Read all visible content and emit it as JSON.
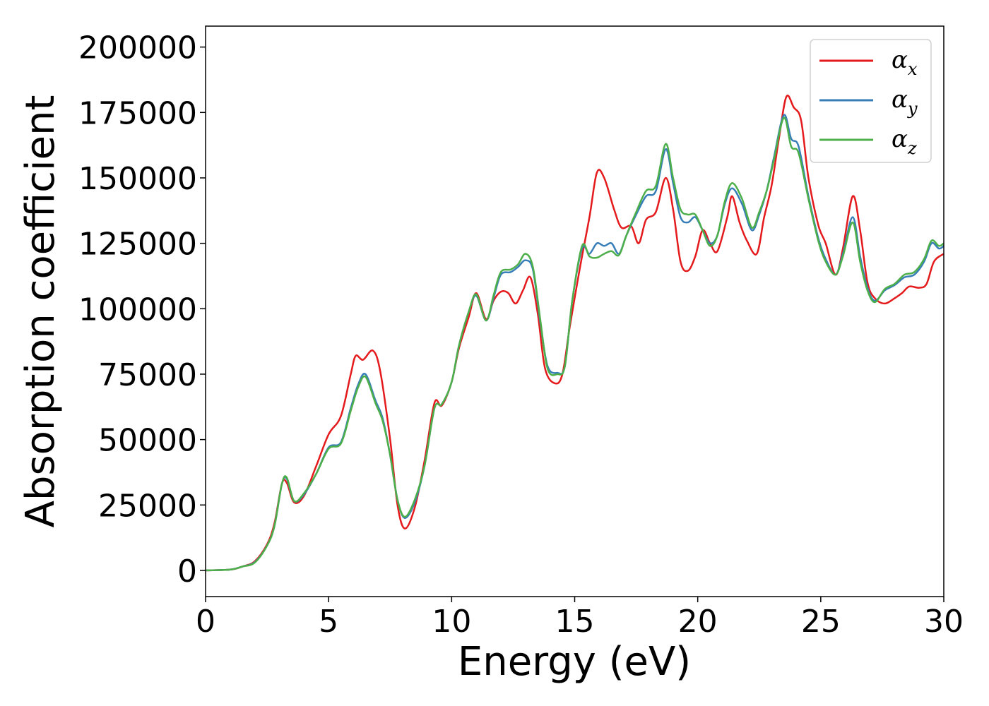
{
  "chart_data": {
    "type": "line",
    "title": "",
    "xlabel": "Energy (eV)",
    "ylabel": "Absorption coefficient",
    "xlim": [
      0,
      30
    ],
    "ylim": [
      -10000,
      208000
    ],
    "xticks": [
      0,
      5,
      10,
      15,
      20,
      25,
      30
    ],
    "yticks": [
      0,
      25000,
      50000,
      75000,
      100000,
      125000,
      150000,
      175000,
      200000
    ],
    "grid": false,
    "legend_position": "top-right",
    "series": [
      {
        "name": "α",
        "subscript": "x",
        "color": "#e41a1c",
        "points": [
          [
            0,
            0
          ],
          [
            1,
            300
          ],
          [
            1.5,
            1500
          ],
          [
            2,
            3500
          ],
          [
            2.5,
            10000
          ],
          [
            2.8,
            18000
          ],
          [
            3.1,
            33000
          ],
          [
            3.3,
            33500
          ],
          [
            3.6,
            26000
          ],
          [
            4,
            28500
          ],
          [
            4.5,
            40000
          ],
          [
            5,
            52000
          ],
          [
            5.5,
            59000
          ],
          [
            5.9,
            75000
          ],
          [
            6.1,
            82000
          ],
          [
            6.4,
            80500
          ],
          [
            6.8,
            84000
          ],
          [
            7.1,
            76000
          ],
          [
            7.5,
            50000
          ],
          [
            7.8,
            25000
          ],
          [
            8.1,
            16000
          ],
          [
            8.5,
            24000
          ],
          [
            8.9,
            42000
          ],
          [
            9.3,
            64000
          ],
          [
            9.6,
            63000
          ],
          [
            10,
            72000
          ],
          [
            10.3,
            85000
          ],
          [
            10.7,
            97000
          ],
          [
            11,
            106000
          ],
          [
            11.4,
            96000
          ],
          [
            11.7,
            103000
          ],
          [
            12,
            106500
          ],
          [
            12.3,
            106000
          ],
          [
            12.6,
            102000
          ],
          [
            12.9,
            107000
          ],
          [
            13.2,
            112000
          ],
          [
            13.5,
            98000
          ],
          [
            13.8,
            77000
          ],
          [
            14.2,
            71500
          ],
          [
            14.5,
            75000
          ],
          [
            14.8,
            93000
          ],
          [
            15.2,
            115000
          ],
          [
            15.6,
            135000
          ],
          [
            15.9,
            152000
          ],
          [
            16.2,
            150000
          ],
          [
            16.6,
            138000
          ],
          [
            16.9,
            131000
          ],
          [
            17.3,
            131500
          ],
          [
            17.6,
            125000
          ],
          [
            17.9,
            134000
          ],
          [
            18.3,
            137000
          ],
          [
            18.7,
            150000
          ],
          [
            19,
            138000
          ],
          [
            19.3,
            118000
          ],
          [
            19.6,
            114500
          ],
          [
            19.9,
            120000
          ],
          [
            20.2,
            130000
          ],
          [
            20.5,
            125000
          ],
          [
            20.8,
            122000
          ],
          [
            21.2,
            135000
          ],
          [
            21.4,
            143000
          ],
          [
            21.7,
            133000
          ],
          [
            22,
            126000
          ],
          [
            22.4,
            121000
          ],
          [
            22.7,
            135000
          ],
          [
            23,
            147000
          ],
          [
            23.3,
            165000
          ],
          [
            23.6,
            181000
          ],
          [
            23.9,
            177000
          ],
          [
            24.2,
            172000
          ],
          [
            24.5,
            150000
          ],
          [
            24.9,
            132000
          ],
          [
            25.2,
            125000
          ],
          [
            25.6,
            113000
          ],
          [
            25.9,
            123000
          ],
          [
            26.3,
            143000
          ],
          [
            26.6,
            130000
          ],
          [
            26.9,
            110000
          ],
          [
            27.2,
            104000
          ],
          [
            27.6,
            102000
          ],
          [
            28,
            104000
          ],
          [
            28.3,
            106000
          ],
          [
            28.6,
            108500
          ],
          [
            29,
            108000
          ],
          [
            29.3,
            109500
          ],
          [
            29.6,
            118000
          ],
          [
            30,
            121000
          ]
        ]
      },
      {
        "name": "α",
        "subscript": "y",
        "color": "#377eb8",
        "points": [
          [
            0,
            0
          ],
          [
            1,
            300
          ],
          [
            1.5,
            1500
          ],
          [
            2,
            3200
          ],
          [
            2.5,
            9500
          ],
          [
            2.8,
            17000
          ],
          [
            3.1,
            33000
          ],
          [
            3.3,
            35000
          ],
          [
            3.6,
            26500
          ],
          [
            4,
            29000
          ],
          [
            4.5,
            37000
          ],
          [
            5,
            47000
          ],
          [
            5.5,
            49000
          ],
          [
            5.9,
            62000
          ],
          [
            6.2,
            71000
          ],
          [
            6.5,
            75000
          ],
          [
            6.9,
            65000
          ],
          [
            7.2,
            58000
          ],
          [
            7.5,
            44000
          ],
          [
            7.8,
            27000
          ],
          [
            8.1,
            20000
          ],
          [
            8.5,
            26000
          ],
          [
            8.9,
            40000
          ],
          [
            9.3,
            62000
          ],
          [
            9.6,
            63500
          ],
          [
            10,
            72000
          ],
          [
            10.3,
            86000
          ],
          [
            10.7,
            99000
          ],
          [
            11,
            105000
          ],
          [
            11.4,
            95500
          ],
          [
            11.7,
            104000
          ],
          [
            12,
            113000
          ],
          [
            12.4,
            114000
          ],
          [
            12.7,
            116000
          ],
          [
            13,
            118500
          ],
          [
            13.3,
            115000
          ],
          [
            13.6,
            95000
          ],
          [
            13.9,
            78000
          ],
          [
            14.3,
            75500
          ],
          [
            14.6,
            78000
          ],
          [
            14.9,
            103000
          ],
          [
            15.3,
            123000
          ],
          [
            15.6,
            121000
          ],
          [
            15.9,
            125000
          ],
          [
            16.2,
            124000
          ],
          [
            16.5,
            125000
          ],
          [
            16.8,
            121000
          ],
          [
            17.1,
            128000
          ],
          [
            17.5,
            136000
          ],
          [
            17.9,
            143000
          ],
          [
            18.3,
            145000
          ],
          [
            18.7,
            161000
          ],
          [
            19,
            148000
          ],
          [
            19.3,
            135000
          ],
          [
            19.6,
            133000
          ],
          [
            19.9,
            135000
          ],
          [
            20.2,
            130000
          ],
          [
            20.5,
            125000
          ],
          [
            20.8,
            128000
          ],
          [
            21.1,
            140000
          ],
          [
            21.4,
            146000
          ],
          [
            21.8,
            140000
          ],
          [
            22.2,
            130000
          ],
          [
            22.5,
            136000
          ],
          [
            22.8,
            145000
          ],
          [
            23.1,
            158000
          ],
          [
            23.5,
            174000
          ],
          [
            23.8,
            165000
          ],
          [
            24.1,
            162000
          ],
          [
            24.5,
            143000
          ],
          [
            24.9,
            127000
          ],
          [
            25.2,
            119000
          ],
          [
            25.6,
            113000
          ],
          [
            25.9,
            121000
          ],
          [
            26.3,
            135000
          ],
          [
            26.6,
            120000
          ],
          [
            26.9,
            108000
          ],
          [
            27.2,
            103000
          ],
          [
            27.6,
            107000
          ],
          [
            28,
            109000
          ],
          [
            28.4,
            112000
          ],
          [
            28.8,
            113000
          ],
          [
            29.2,
            118000
          ],
          [
            29.5,
            125000
          ],
          [
            29.8,
            123000
          ],
          [
            30,
            124000
          ]
        ]
      },
      {
        "name": "α",
        "subscript": "z",
        "color": "#4daf4a",
        "points": [
          [
            0,
            0
          ],
          [
            1,
            300
          ],
          [
            1.5,
            1500
          ],
          [
            2,
            3000
          ],
          [
            2.5,
            9500
          ],
          [
            2.8,
            17000
          ],
          [
            3.1,
            33000
          ],
          [
            3.3,
            35500
          ],
          [
            3.6,
            26500
          ],
          [
            4,
            29500
          ],
          [
            4.5,
            37000
          ],
          [
            5,
            46500
          ],
          [
            5.5,
            48500
          ],
          [
            5.9,
            61000
          ],
          [
            6.2,
            70000
          ],
          [
            6.5,
            74000
          ],
          [
            6.9,
            64000
          ],
          [
            7.2,
            57000
          ],
          [
            7.5,
            44000
          ],
          [
            7.8,
            27000
          ],
          [
            8.1,
            20500
          ],
          [
            8.5,
            27000
          ],
          [
            8.9,
            40000
          ],
          [
            9.3,
            62000
          ],
          [
            9.6,
            63500
          ],
          [
            10,
            72000
          ],
          [
            10.3,
            86000
          ],
          [
            10.7,
            99000
          ],
          [
            11,
            105500
          ],
          [
            11.4,
            95500
          ],
          [
            11.7,
            105000
          ],
          [
            12,
            114000
          ],
          [
            12.4,
            115000
          ],
          [
            12.7,
            117000
          ],
          [
            13,
            121000
          ],
          [
            13.3,
            116000
          ],
          [
            13.6,
            96000
          ],
          [
            13.9,
            77000
          ],
          [
            14.3,
            75000
          ],
          [
            14.6,
            78000
          ],
          [
            14.9,
            103000
          ],
          [
            15.3,
            124000
          ],
          [
            15.6,
            120000
          ],
          [
            15.9,
            119500
          ],
          [
            16.2,
            121000
          ],
          [
            16.5,
            122000
          ],
          [
            16.8,
            120500
          ],
          [
            17.1,
            128000
          ],
          [
            17.5,
            137000
          ],
          [
            17.9,
            145000
          ],
          [
            18.3,
            147000
          ],
          [
            18.7,
            163000
          ],
          [
            19,
            150000
          ],
          [
            19.3,
            138000
          ],
          [
            19.6,
            136000
          ],
          [
            19.9,
            136000
          ],
          [
            20.2,
            130000
          ],
          [
            20.5,
            124000
          ],
          [
            20.8,
            128000
          ],
          [
            21.1,
            141000
          ],
          [
            21.4,
            148000
          ],
          [
            21.8,
            142000
          ],
          [
            22.2,
            131000
          ],
          [
            22.5,
            137000
          ],
          [
            22.8,
            145000
          ],
          [
            23.1,
            157000
          ],
          [
            23.5,
            173000
          ],
          [
            23.8,
            162000
          ],
          [
            24.1,
            159500
          ],
          [
            24.5,
            142000
          ],
          [
            24.9,
            126000
          ],
          [
            25.2,
            118000
          ],
          [
            25.6,
            113000
          ],
          [
            25.9,
            120000
          ],
          [
            26.3,
            133000
          ],
          [
            26.6,
            118000
          ],
          [
            26.9,
            107000
          ],
          [
            27.2,
            102500
          ],
          [
            27.6,
            107500
          ],
          [
            28,
            109500
          ],
          [
            28.4,
            113000
          ],
          [
            28.8,
            114000
          ],
          [
            29.2,
            119000
          ],
          [
            29.5,
            126000
          ],
          [
            29.8,
            124000
          ],
          [
            30,
            125000
          ]
        ]
      }
    ]
  }
}
